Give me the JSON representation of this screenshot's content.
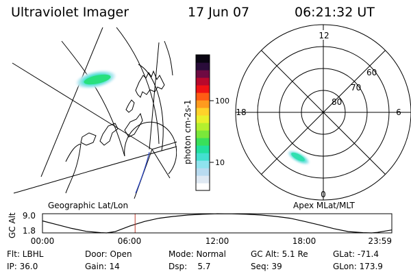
{
  "header": {
    "instrument": "Ultraviolet Imager",
    "date": "17 Jun 07",
    "time": "06:21:32 UT"
  },
  "colorbar": {
    "title": "photon cm-2s-1",
    "ticks": [
      "100",
      "10"
    ],
    "colors": [
      "#ffffff",
      "#dfe9f3",
      "#b9dbf0",
      "#8fe3ee",
      "#43e0d0",
      "#22e09e",
      "#39e05a",
      "#7ae83a",
      "#b4ef2e",
      "#e9f02c",
      "#ffd22a",
      "#ff9b1e",
      "#ff5c14",
      "#f01214",
      "#b8082c",
      "#6e0a42",
      "#2a0c3a",
      "#0a0512"
    ]
  },
  "polar": {
    "lat_labels": [
      "80",
      "70",
      "60"
    ],
    "mlt_labels": {
      "top": "12",
      "left": "18",
      "right": "6",
      "bottom": "0"
    }
  },
  "panel_labels": {
    "left": "Geographic Lat/Lon",
    "right": "Apex MLat/MLT"
  },
  "timeline": {
    "ylabel": "GC Alt",
    "y_ticks": [
      "9.0",
      "1.8"
    ],
    "x_ticks": [
      "00:00",
      "06:00",
      "12:00",
      "18:00",
      "23:59"
    ]
  },
  "status": {
    "row1": [
      "Flt: LBHL",
      "Door: Open",
      "Mode: Normal",
      "GC Alt: 5.1 Re",
      "GLat: -71.4"
    ],
    "row2": [
      "IP: 36.0",
      "Gain: 14",
      "Dsp:    5.7",
      "Seq: 39",
      "GLon: 173.9"
    ]
  },
  "chart_data": [
    {
      "type": "line",
      "title": "",
      "ylabel": "GC Alt",
      "x_range_hours": [
        0,
        23.9833
      ],
      "ylim": [
        1.8,
        9.0
      ],
      "current_time_hours": 6.3589,
      "current_value": 5.1,
      "series": [
        {
          "x": [
            0,
            1,
            2,
            3,
            4,
            4.4,
            5,
            6,
            7,
            8,
            9,
            10,
            11,
            12,
            13,
            14,
            15,
            16,
            17,
            18,
            19,
            20,
            21,
            22,
            22.6,
            23,
            23.9833
          ],
          "y": [
            6.3,
            4.9,
            3.5,
            2.4,
            1.9,
            1.8,
            2.3,
            4.4,
            6.1,
            7.3,
            8.0,
            8.5,
            8.8,
            9.0,
            8.95,
            8.8,
            8.5,
            8.0,
            7.3,
            6.1,
            4.8,
            3.4,
            2.3,
            1.9,
            1.8,
            2.0,
            2.9
          ]
        }
      ]
    }
  ]
}
